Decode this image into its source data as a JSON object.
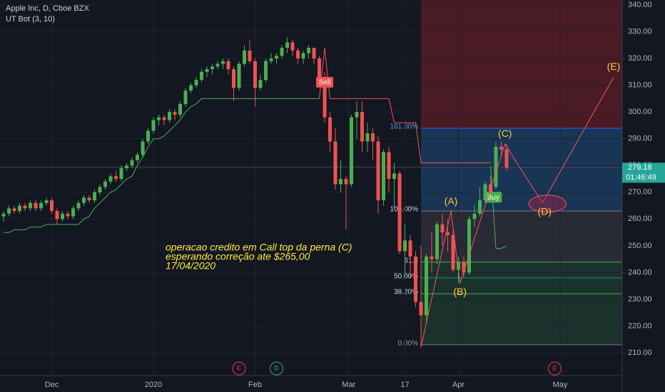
{
  "chart_data": {
    "type": "candlestick",
    "title": "Apple Inc, D, Cboe BZX",
    "indicator": "UT Bot (3, 10)",
    "up_color": "#4caf50",
    "down_color": "#ef5350",
    "candles": [
      [
        261,
        263,
        259,
        262
      ],
      [
        262,
        265,
        261,
        264
      ],
      [
        264,
        265,
        262,
        263
      ],
      [
        263,
        266,
        262,
        265
      ],
      [
        265,
        266,
        263,
        264
      ],
      [
        264,
        267,
        263,
        266
      ],
      [
        266,
        267,
        263,
        264
      ],
      [
        264,
        267,
        263,
        266
      ],
      [
        266,
        268,
        265,
        267
      ],
      [
        267,
        268,
        262,
        263
      ],
      [
        263,
        264,
        258,
        260
      ],
      [
        260,
        263,
        259,
        262
      ],
      [
        262,
        263,
        260,
        261
      ],
      [
        261,
        265,
        260,
        264
      ],
      [
        264,
        267,
        263,
        266
      ],
      [
        266,
        269,
        265,
        268
      ],
      [
        268,
        269,
        266,
        267
      ],
      [
        267,
        271,
        266,
        270
      ],
      [
        270,
        273,
        269,
        272
      ],
      [
        272,
        275,
        271,
        274
      ],
      [
        274,
        277,
        273,
        276
      ],
      [
        276,
        278,
        274,
        275
      ],
      [
        275,
        280,
        274,
        279
      ],
      [
        279,
        281,
        278,
        280
      ],
      [
        280,
        283,
        279,
        282
      ],
      [
        282,
        285,
        281,
        284
      ],
      [
        284,
        290,
        283,
        289
      ],
      [
        289,
        294,
        288,
        293
      ],
      [
        293,
        298,
        292,
        297
      ],
      [
        297,
        299,
        295,
        298
      ],
      [
        298,
        299,
        295,
        297
      ],
      [
        297,
        301,
        296,
        300
      ],
      [
        300,
        301,
        297,
        299
      ],
      [
        299,
        304,
        298,
        303
      ],
      [
        303,
        309,
        302,
        308
      ],
      [
        308,
        311,
        307,
        310
      ],
      [
        310,
        313,
        309,
        312
      ],
      [
        312,
        316,
        311,
        315
      ],
      [
        315,
        317,
        313,
        316
      ],
      [
        316,
        318,
        314,
        317
      ],
      [
        317,
        319,
        316,
        318
      ],
      [
        318,
        320,
        316,
        319
      ],
      [
        319,
        320,
        314,
        316
      ],
      [
        316,
        317,
        304,
        309
      ],
      [
        309,
        319,
        308,
        318
      ],
      [
        318,
        325,
        317,
        323
      ],
      [
        323,
        327,
        318,
        319
      ],
      [
        319,
        320,
        302,
        309
      ],
      [
        309,
        314,
        308,
        312
      ],
      [
        312,
        320,
        311,
        319
      ],
      [
        319,
        322,
        318,
        320
      ],
      [
        320,
        322,
        318,
        321
      ],
      [
        321,
        325,
        320,
        324
      ],
      [
        324,
        328,
        322,
        326
      ],
      [
        326,
        327,
        321,
        323
      ],
      [
        323,
        324,
        318,
        320
      ],
      [
        320,
        323,
        318,
        322
      ],
      [
        322,
        325,
        320,
        324
      ],
      [
        324,
        324,
        318,
        320
      ],
      [
        320,
        321,
        311,
        313
      ],
      [
        313,
        315,
        296,
        298
      ],
      [
        298,
        300,
        285,
        289
      ],
      [
        289,
        294,
        271,
        273
      ],
      [
        273,
        282,
        270,
        275
      ],
      [
        275,
        276,
        256,
        273
      ],
      [
        273,
        299,
        272,
        298
      ],
      [
        298,
        304,
        290,
        300
      ],
      [
        300,
        304,
        285,
        289
      ],
      [
        289,
        296,
        285,
        292
      ],
      [
        292,
        294,
        282,
        289
      ],
      [
        289,
        291,
        262,
        267
      ],
      [
        267,
        286,
        265,
        285
      ],
      [
        285,
        287,
        270,
        275
      ],
      [
        275,
        281,
        264,
        277
      ],
      [
        277,
        278,
        247,
        248
      ],
      [
        248,
        258,
        238,
        252
      ],
      [
        252,
        254,
        238,
        246
      ],
      [
        246,
        248,
        227,
        229
      ],
      [
        229,
        250,
        212,
        224
      ],
      [
        224,
        247,
        222,
        246
      ],
      [
        246,
        255,
        240,
        245
      ],
      [
        245,
        259,
        243,
        258
      ],
      [
        258,
        262,
        250,
        255
      ],
      [
        255,
        260,
        248,
        254
      ],
      [
        254,
        256,
        240,
        241
      ],
      [
        241,
        246,
        236,
        244
      ],
      [
        244,
        246,
        238,
        240
      ],
      [
        240,
        261,
        239,
        260
      ],
      [
        260,
        265,
        257,
        262
      ],
      [
        262,
        272,
        261,
        267
      ],
      [
        267,
        274,
        266,
        273
      ],
      [
        273,
        276,
        266,
        268
      ],
      [
        272,
        289,
        271,
        287
      ],
      [
        287,
        289,
        283,
        286
      ],
      [
        286,
        288,
        278,
        279.18
      ]
    ],
    "ut_bot_up": [
      255,
      255,
      256,
      256,
      256,
      257,
      257,
      257,
      258,
      258,
      258,
      258,
      258,
      258,
      258,
      260,
      261,
      264,
      266,
      268,
      270,
      271,
      273,
      275,
      276,
      280,
      283,
      287,
      290,
      290,
      291,
      293,
      295,
      297,
      300,
      302,
      303,
      305,
      305,
      305,
      305,
      305,
      305,
      305,
      305,
      305,
      305,
      305,
      305,
      305,
      305,
      305,
      305,
      305,
      305,
      305,
      305,
      305,
      305,
      305,
      null,
      null,
      null,
      null,
      null,
      null,
      null,
      null,
      null,
      null,
      null,
      null,
      null,
      null,
      null,
      null,
      null,
      null,
      null,
      null,
      null,
      null,
      null,
      null,
      null,
      null,
      null,
      null,
      null,
      null,
      null,
      280,
      249,
      249,
      250
    ],
    "ut_bot_down": [
      null,
      null,
      null,
      null,
      null,
      null,
      null,
      null,
      null,
      null,
      null,
      null,
      null,
      null,
      null,
      null,
      null,
      null,
      null,
      null,
      null,
      null,
      null,
      null,
      null,
      null,
      null,
      null,
      null,
      null,
      null,
      null,
      null,
      null,
      null,
      null,
      null,
      null,
      null,
      null,
      null,
      null,
      null,
      null,
      null,
      null,
      null,
      null,
      null,
      null,
      null,
      null,
      null,
      null,
      null,
      null,
      null,
      null,
      null,
      305,
      324,
      305,
      305,
      305,
      305,
      305,
      305,
      305,
      305,
      305,
      305,
      305,
      305,
      296,
      296,
      296,
      296,
      296,
      281,
      281,
      281,
      281,
      281,
      281,
      281,
      281,
      281,
      281,
      281,
      281,
      281,
      281,
      null,
      null,
      null
    ],
    "signals": [
      {
        "label": "Sell",
        "x": 60,
        "y": 311
      },
      {
        "label": "Buy",
        "x": 91.5,
        "y": 268
      }
    ],
    "xlim": [
      -0.67,
      115.6
    ],
    "ylim": [
      203.35,
      341.86
    ],
    "xticks": [
      {
        "value": 9,
        "label": "Dec"
      },
      {
        "value": 28,
        "label": "2020"
      },
      {
        "value": 47,
        "label": "Feb"
      },
      {
        "value": 64.5,
        "label": "Mar"
      },
      {
        "value": 75,
        "label": "17"
      },
      {
        "value": 85,
        "label": "Apr"
      },
      {
        "value": 104,
        "label": "May"
      }
    ],
    "yticks": [
      {
        "value": 340,
        "label": "340.00"
      },
      {
        "value": 330,
        "label": "330.00"
      },
      {
        "value": 320,
        "label": "320.00"
      },
      {
        "value": 310,
        "label": "310.00"
      },
      {
        "value": 300,
        "label": "300.00"
      },
      {
        "value": 290,
        "label": "290.00"
      },
      {
        "value": 280,
        "label": "280.00"
      },
      {
        "value": 270,
        "label": "270.00"
      },
      {
        "value": 260,
        "label": "260.00"
      },
      {
        "value": 250,
        "label": "250.00"
      },
      {
        "value": 240,
        "label": "240.00"
      },
      {
        "value": 230,
        "label": "230.00"
      },
      {
        "value": 220,
        "label": "220.00"
      },
      {
        "value": 210,
        "label": "210.00"
      }
    ],
    "grid": true,
    "countdown": "01:46:49",
    "fib_start": 78,
    "fib_levels": [
      {
        "label": "161.80%",
        "value": 293.9
      },
      {
        "label": "100.00%",
        "value": 263
      },
      {
        "label": "61.8",
        "value": 243.9
      },
      {
        "label": "50.00%",
        "value": 238
      },
      {
        "label": "38.20%",
        "value": 232.1
      },
      {
        "label": "0.00%",
        "value": 213
      }
    ],
    "wave_start": {
      "x": 78,
      "y": 212
    },
    "waves": [
      {
        "label": "(A)",
        "x": 83.6,
        "y": 263
      },
      {
        "label": "(B)",
        "x": 85.3,
        "y": 236
      },
      {
        "label": "(C)",
        "x": 93.7,
        "y": 288
      },
      {
        "label": "(D)",
        "x": 100.7,
        "y": 266
      },
      {
        "label": "(E)",
        "x": 114,
        "y": 313
      }
    ],
    "annotation": [
      "operacao credito em Call top da perna (C)",
      "esperando correção ate $265,00",
      "17/04/2020"
    ],
    "events": [
      {
        "label": "E",
        "x": 44
      },
      {
        "label": "D",
        "x": 51
      },
      {
        "label": "E",
        "x": 103
      }
    ]
  }
}
